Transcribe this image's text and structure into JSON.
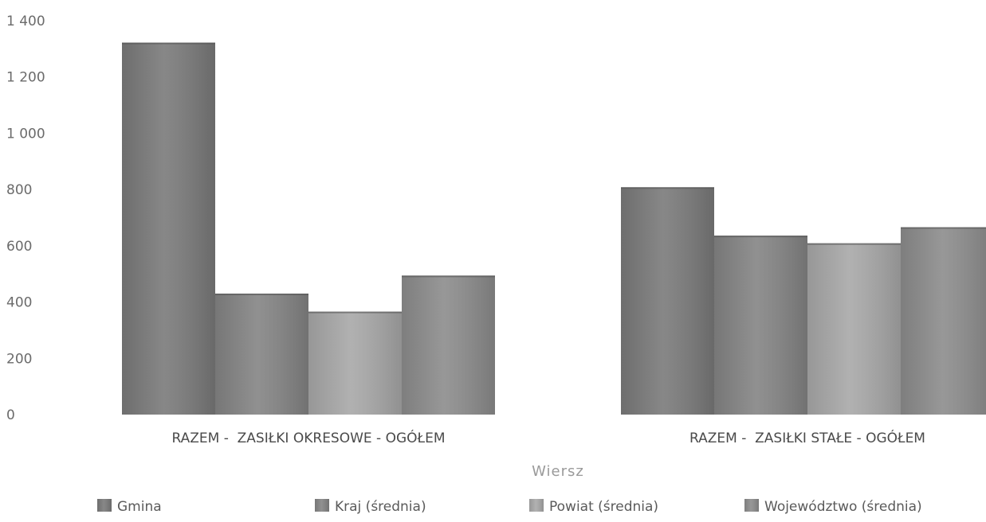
{
  "chart_data": {
    "type": "bar",
    "xlabel": "Wiersz",
    "ylabel": "",
    "ylim": [
      0,
      1400
    ],
    "yticks": [
      0,
      200,
      400,
      600,
      800,
      1000,
      1200,
      1400
    ],
    "ytick_labels": [
      "0",
      "200",
      "400",
      "600",
      "800",
      "1 000",
      "1 200",
      "1 400"
    ],
    "categories": [
      "RAZEM -  ZASIŁKI OKRESOWE - OGÓŁEM",
      "RAZEM -  ZASIŁKI STAŁE - OGÓŁEM"
    ],
    "series": [
      {
        "name": "Gmina",
        "values": [
          1322,
          808
        ],
        "color": "#7a7a7a"
      },
      {
        "name": "Kraj (średnia)",
        "values": [
          430,
          636
        ],
        "color": "#848484"
      },
      {
        "name": "Powiat (średnia)",
        "values": [
          366,
          609
        ],
        "color": "#a8a8a8"
      },
      {
        "name": "Województwo (średnia)",
        "values": [
          494,
          666
        ],
        "color": "#8c8c8c"
      }
    ],
    "grid": false,
    "legend_position": "bottom"
  }
}
